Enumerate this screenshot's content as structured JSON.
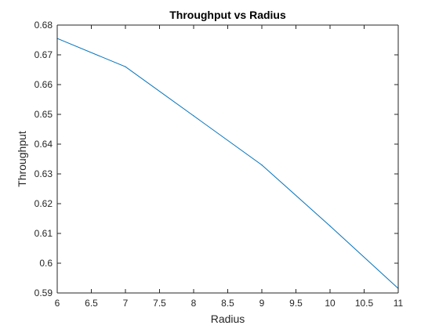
{
  "chart_data": {
    "type": "line",
    "title": "Throughput vs Radius",
    "xlabel": "Radius",
    "ylabel": "Throughput",
    "xlim": [
      6,
      11
    ],
    "ylim": [
      0.59,
      0.68
    ],
    "x_ticks": [
      "6",
      "6.5",
      "7",
      "7.5",
      "8",
      "8.5",
      "9",
      "9.5",
      "10",
      "10.5",
      "11"
    ],
    "y_ticks": [
      "0.59",
      "0.6",
      "0.61",
      "0.62",
      "0.63",
      "0.64",
      "0.65",
      "0.66",
      "0.67",
      "0.68"
    ],
    "grid": false,
    "series": [
      {
        "x": [
          6,
          7,
          8,
          9,
          10,
          11
        ],
        "y": [
          0.6755,
          0.666,
          0.6495,
          0.633,
          0.6125,
          0.5915
        ],
        "color": "#0072bd"
      }
    ]
  }
}
